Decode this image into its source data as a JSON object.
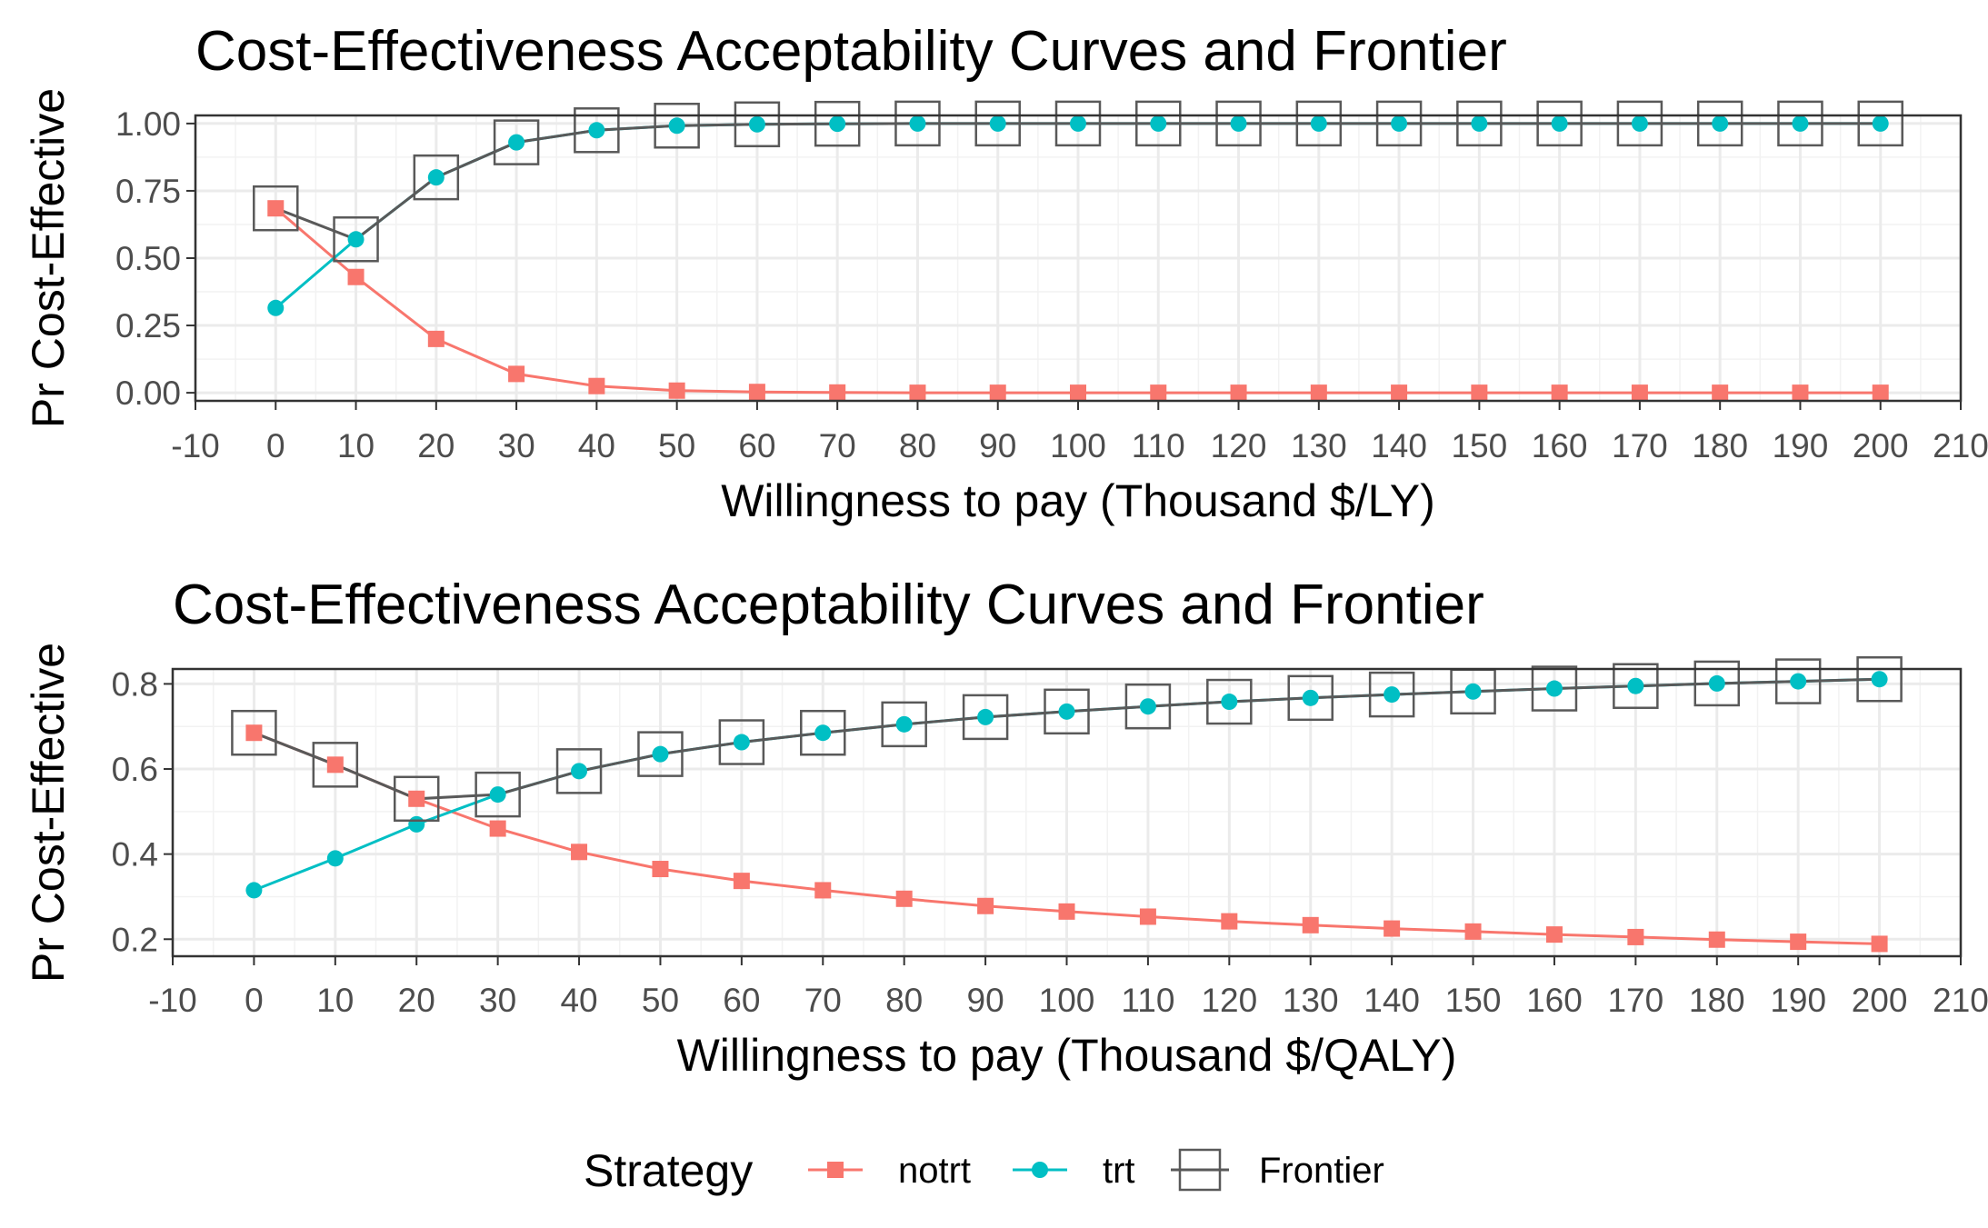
{
  "chart_data": [
    {
      "type": "line",
      "title": "Cost-Effectiveness Acceptability Curves and Frontier",
      "xlabel": "Willingness to pay (Thousand $/LY)",
      "ylabel": "Pr Cost-Effective",
      "xlim": [
        -10,
        210
      ],
      "ylim": [
        -0.03,
        1.03
      ],
      "xticks": [
        -10,
        0,
        10,
        20,
        30,
        40,
        50,
        60,
        70,
        80,
        90,
        100,
        110,
        120,
        130,
        140,
        150,
        160,
        170,
        180,
        190,
        200,
        210
      ],
      "xtick_labels": [
        "-10",
        "0",
        "10",
        "20",
        "30",
        "40",
        "50",
        "60",
        "70",
        "80",
        "90",
        "100",
        "110",
        "120",
        "130",
        "140",
        "150",
        "160",
        "170",
        "180",
        "190",
        "200",
        "210"
      ],
      "yticks": [
        0,
        0.25,
        0.5,
        0.75,
        1.0
      ],
      "ytick_labels": [
        "0.00",
        "0.25",
        "0.50",
        "0.75",
        "1.00"
      ],
      "grid": true,
      "x": [
        0,
        10,
        20,
        30,
        40,
        50,
        60,
        70,
        80,
        90,
        100,
        110,
        120,
        130,
        140,
        150,
        160,
        170,
        180,
        190,
        200
      ],
      "series": [
        {
          "name": "notrt",
          "marker": "square",
          "color": "#F8766D",
          "values": [
            0.685,
            0.43,
            0.2,
            0.07,
            0.025,
            0.008,
            0.003,
            0.001,
            0,
            0,
            0,
            0,
            0,
            0,
            0,
            0,
            0,
            0,
            0,
            0,
            0
          ]
        },
        {
          "name": "trt",
          "marker": "circle",
          "color": "#00BFC4",
          "values": [
            0.315,
            0.57,
            0.8,
            0.93,
            0.975,
            0.992,
            0.997,
            0.999,
            1,
            1,
            1,
            1,
            1,
            1,
            1,
            1,
            1,
            1,
            1,
            1,
            1
          ]
        },
        {
          "name": "Frontier",
          "marker": "open-square",
          "color": "#595959",
          "values": [
            0.685,
            0.57,
            0.8,
            0.93,
            0.975,
            0.992,
            0.997,
            0.999,
            1,
            1,
            1,
            1,
            1,
            1,
            1,
            1,
            1,
            1,
            1,
            1,
            1
          ]
        }
      ]
    },
    {
      "type": "line",
      "title": "Cost-Effectiveness Acceptability Curves and Frontier",
      "xlabel": "Willingness to pay (Thousand $/QALY)",
      "ylabel": "Pr Cost-Effective",
      "xlim": [
        -10,
        210
      ],
      "ylim": [
        0.16,
        0.835
      ],
      "xticks": [
        -10,
        0,
        10,
        20,
        30,
        40,
        50,
        60,
        70,
        80,
        90,
        100,
        110,
        120,
        130,
        140,
        150,
        160,
        170,
        180,
        190,
        200,
        210
      ],
      "xtick_labels": [
        "-10",
        "0",
        "10",
        "20",
        "30",
        "40",
        "50",
        "60",
        "70",
        "80",
        "90",
        "100",
        "110",
        "120",
        "130",
        "140",
        "150",
        "160",
        "170",
        "180",
        "190",
        "200",
        "210"
      ],
      "yticks": [
        0.2,
        0.4,
        0.6,
        0.8
      ],
      "ytick_labels": [
        "0.2",
        "0.4",
        "0.6",
        "0.8"
      ],
      "grid": true,
      "x": [
        0,
        10,
        20,
        30,
        40,
        50,
        60,
        70,
        80,
        90,
        100,
        110,
        120,
        130,
        140,
        150,
        160,
        170,
        180,
        190,
        200
      ],
      "series": [
        {
          "name": "notrt",
          "marker": "square",
          "color": "#F8766D",
          "values": [
            0.685,
            0.61,
            0.53,
            0.46,
            0.405,
            0.365,
            0.337,
            0.315,
            0.295,
            0.278,
            0.265,
            0.253,
            0.242,
            0.233,
            0.225,
            0.218,
            0.211,
            0.205,
            0.199,
            0.194,
            0.189
          ]
        },
        {
          "name": "trt",
          "marker": "circle",
          "color": "#00BFC4",
          "values": [
            0.315,
            0.39,
            0.47,
            0.54,
            0.595,
            0.635,
            0.663,
            0.685,
            0.705,
            0.722,
            0.735,
            0.747,
            0.758,
            0.767,
            0.775,
            0.782,
            0.789,
            0.795,
            0.801,
            0.806,
            0.811
          ]
        },
        {
          "name": "Frontier",
          "marker": "open-square",
          "color": "#595959",
          "values": [
            0.685,
            0.61,
            0.53,
            0.54,
            0.595,
            0.635,
            0.663,
            0.685,
            0.705,
            0.722,
            0.735,
            0.747,
            0.758,
            0.767,
            0.775,
            0.782,
            0.789,
            0.795,
            0.801,
            0.806,
            0.811
          ]
        }
      ]
    }
  ],
  "legend": {
    "title": "Strategy",
    "position": "bottom",
    "items": [
      {
        "label": "notrt",
        "marker": "square",
        "color": "#F8766D"
      },
      {
        "label": "trt",
        "marker": "circle",
        "color": "#00BFC4"
      },
      {
        "label": "Frontier",
        "marker": "open-square",
        "color": "#595959"
      }
    ]
  }
}
